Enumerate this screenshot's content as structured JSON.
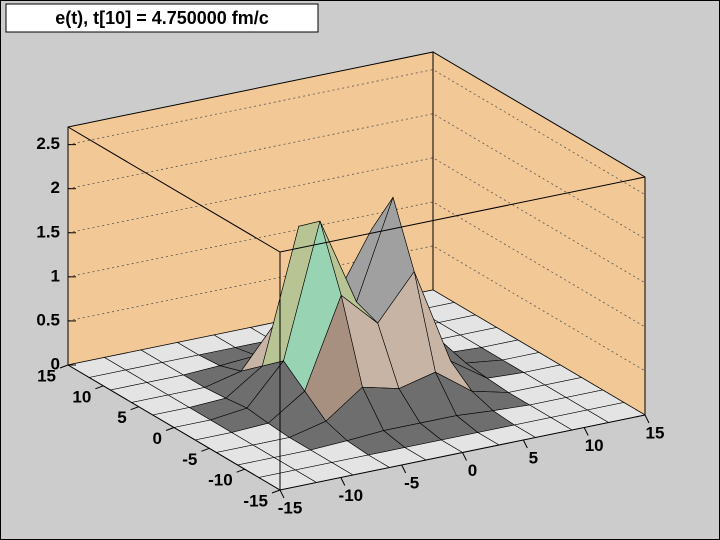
{
  "chart_data": {
    "type": "surface",
    "title": "e(t), t[10] = 4.750000 fm/c",
    "x": [
      -15,
      -12,
      -9,
      -6,
      -3,
      0,
      3,
      6,
      9,
      12,
      15
    ],
    "y": [
      -15,
      -12,
      -9,
      -6,
      -3,
      0,
      3,
      6,
      9,
      12,
      15
    ],
    "z": [
      [
        0,
        0,
        0,
        0,
        0,
        0,
        0,
        0,
        0,
        0,
        0
      ],
      [
        0,
        0,
        0,
        0,
        0,
        0,
        0,
        0,
        0,
        0,
        0
      ],
      [
        0,
        0,
        0,
        0.02,
        0.05,
        0.05,
        0.05,
        0.02,
        0,
        0,
        0
      ],
      [
        0,
        0,
        0,
        0.1,
        0.4,
        0.3,
        0.4,
        0.1,
        0,
        0,
        0
      ],
      [
        0,
        0,
        0.02,
        0.3,
        1.3,
        0.9,
        1.4,
        0.3,
        0.02,
        0,
        0
      ],
      [
        0,
        0,
        0.05,
        0.5,
        2.0,
        1.0,
        2.1,
        0.5,
        0.05,
        0,
        0
      ],
      [
        0,
        0,
        0.02,
        0.3,
        1.8,
        0.9,
        1.6,
        0.3,
        0.02,
        0,
        0
      ],
      [
        0,
        0,
        0,
        0.1,
        0.6,
        0.4,
        0.5,
        0.1,
        0,
        0,
        0
      ],
      [
        0,
        0,
        0,
        0.02,
        0.05,
        0.05,
        0.05,
        0.02,
        0,
        0,
        0
      ],
      [
        0,
        0,
        0,
        0,
        0,
        0,
        0,
        0,
        0,
        0,
        0
      ],
      [
        0,
        0,
        0,
        0,
        0,
        0,
        0,
        0,
        0,
        0,
        0
      ]
    ],
    "xlim": [
      -15,
      15
    ],
    "ylim": [
      -15,
      15
    ],
    "zlim": [
      0,
      2.7
    ],
    "xticks": [
      -15,
      -10,
      -5,
      0,
      5,
      10,
      15
    ],
    "yticks": [
      -15,
      -10,
      -5,
      0,
      5,
      10,
      15
    ],
    "zticks": [
      0,
      0.5,
      1,
      1.5,
      2,
      2.5
    ],
    "grid": true,
    "wall_color": "#f2c896",
    "palette": [
      "#e4e4e4",
      "#6e6e6e",
      "#a89080",
      "#c8b4a4",
      "#98d4b4",
      "#b8c494",
      "#a0a0a0",
      "#c0a4b4",
      "#ff2050",
      "#ff40ff"
    ]
  }
}
